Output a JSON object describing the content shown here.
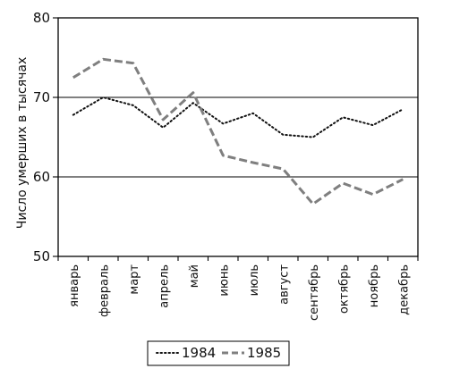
{
  "chart_data": {
    "type": "line",
    "ylabel": "Число умерших в тысячах",
    "xlabel": "",
    "title": "",
    "ylim": [
      50,
      80
    ],
    "yticks": [
      50,
      60,
      70,
      80
    ],
    "grid_y": [
      60,
      70
    ],
    "categories": [
      "январь",
      "февраль",
      "март",
      "апрель",
      "май",
      "июнь",
      "июль",
      "август",
      "сентябрь",
      "октябрь",
      "ноябрь",
      "декабрь"
    ],
    "legend_position": "bottom-center",
    "series": [
      {
        "name": "1984",
        "style": "dotted",
        "color": "#111111",
        "values": [
          67.8,
          70.0,
          69.0,
          66.2,
          69.3,
          66.7,
          68.0,
          65.3,
          65.0,
          67.5,
          66.5,
          68.5
        ]
      },
      {
        "name": "1985",
        "style": "dashed",
        "color": "#7f7f7f",
        "values": [
          72.5,
          74.8,
          74.3,
          67.2,
          70.6,
          62.7,
          61.8,
          61.0,
          56.6,
          59.2,
          57.8,
          59.7
        ]
      }
    ]
  }
}
